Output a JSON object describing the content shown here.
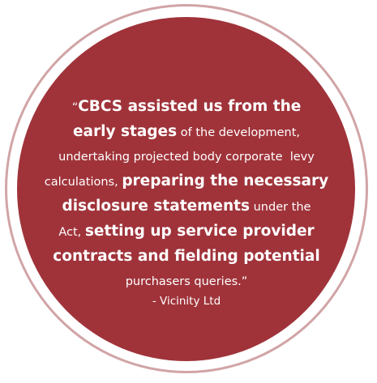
{
  "colors": {
    "background": "#ffffff",
    "ring": "#d1a4a6",
    "disc": "#a0333a",
    "text": "#ffffff"
  },
  "quote": {
    "lines": [
      [
        {
          "text": "“",
          "bold": false
        },
        {
          "text": "CBCS assisted us from the",
          "bold": true
        }
      ],
      [
        {
          "text": "early stages",
          "bold": true
        },
        {
          "text": " of the development,",
          "bold": false
        }
      ],
      [
        {
          "text": "undertaking projected body corporate  levy",
          "bold": false
        }
      ],
      [
        {
          "text": "calculations, ",
          "bold": false
        },
        {
          "text": "preparing the necessary",
          "bold": true
        }
      ],
      [
        {
          "text": "disclosure statements",
          "bold": true
        },
        {
          "text": " under the",
          "bold": false
        }
      ],
      [
        {
          "text": "Act, ",
          "bold": false
        },
        {
          "text": "setting up service provider",
          "bold": true
        }
      ],
      [
        {
          "text": "contracts and fielding potential",
          "bold": true
        }
      ],
      [
        {
          "text": "purchasers queries.”",
          "bold": false
        }
      ]
    ]
  },
  "attribution": "- Vicinity Ltd"
}
